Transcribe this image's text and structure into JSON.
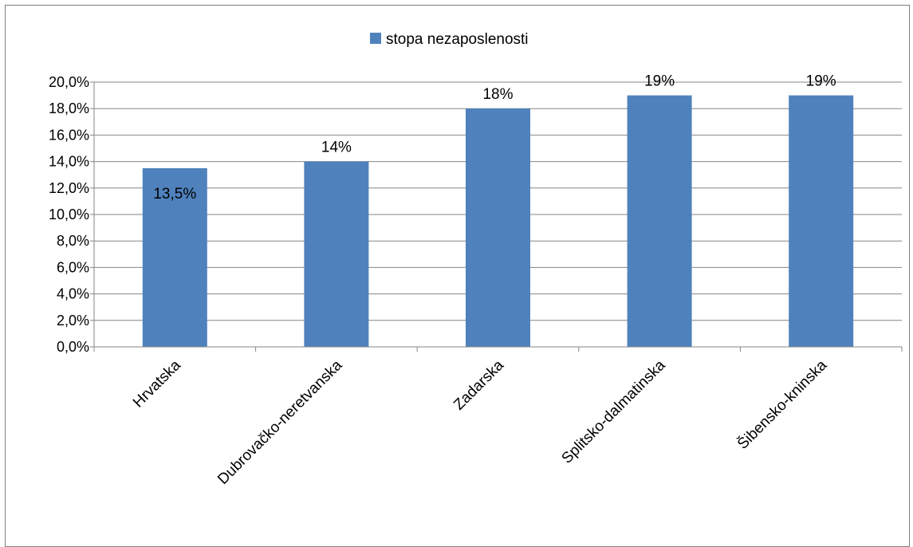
{
  "chart_data": {
    "type": "bar",
    "title": "",
    "xlabel": "",
    "ylabel": "",
    "categories": [
      "Hrvatska",
      "Dubrovačko-neretvanska",
      "Zadarska",
      "Splitsko-dalmatinska",
      "Šibensko-kninska"
    ],
    "series": [
      {
        "name": "stopa nezaposlenosti",
        "values": [
          13.5,
          14,
          18,
          19,
          19
        ],
        "data_labels": [
          "13,5%",
          "14%",
          "18%",
          "19%",
          "19%"
        ],
        "color": "#4f81bd"
      }
    ],
    "ylim": [
      0,
      20
    ],
    "y_ticks": [
      0,
      2,
      4,
      6,
      8,
      10,
      12,
      14,
      16,
      18,
      20
    ],
    "y_tick_labels": [
      "0,0%",
      "2,0%",
      "4,0%",
      "6,0%",
      "8,0%",
      "10,0%",
      "12,0%",
      "14,0%",
      "16,0%",
      "18,0%",
      "20,0%"
    ],
    "grid": true,
    "legend_position": "top"
  },
  "colors": {
    "bar": "#4f81bd",
    "grid": "#868686",
    "axis": "#868686"
  }
}
